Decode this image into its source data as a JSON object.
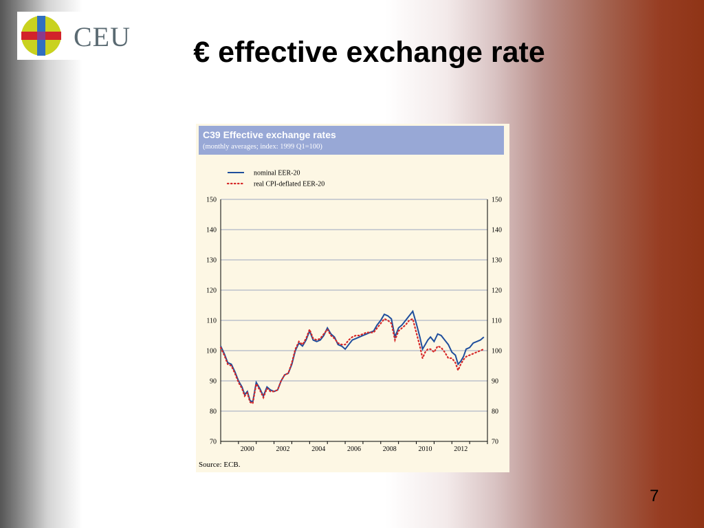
{
  "logo": {
    "text": "CEU",
    "colors": {
      "circle": "#c9d21f",
      "bar_vertical": "#2f6fc0",
      "bar_horizontal": "#d2232a",
      "center": "#8a3a8c",
      "text": "#5a6a72"
    }
  },
  "slide": {
    "title": "€ effective exchange rate",
    "page_number": "7"
  },
  "figure": {
    "title": "C39 Effective exchange rates",
    "subtitle": "(monthly averages; index: 1999 Q1=100)",
    "source": "Source: ECB.",
    "colors": {
      "header": "#98a8d6",
      "background": "#fdf7e4",
      "nominal": "#1f4e9c",
      "real": "#d62828",
      "grid": "#9aa6c0"
    }
  },
  "chart_data": {
    "type": "line",
    "title": "C39 Effective exchange rates",
    "subtitle": "(monthly averages; index: 1999 Q1=100)",
    "xlabel": "",
    "ylabel": "",
    "xlim": [
      1999.0,
      2014.0
    ],
    "ylim": [
      70,
      150
    ],
    "x_ticks": [
      "2000",
      "2002",
      "2004",
      "2006",
      "2008",
      "2010",
      "2012"
    ],
    "y_ticks": [
      70,
      80,
      90,
      100,
      110,
      120,
      130,
      140,
      150
    ],
    "grid": true,
    "legend_position": "top-left",
    "series": [
      {
        "name": "nominal EER-20",
        "style": "solid",
        "points": [
          [
            1999.0,
            101.5
          ],
          [
            1999.2,
            99.0
          ],
          [
            1999.4,
            96.0
          ],
          [
            1999.6,
            95.5
          ],
          [
            1999.8,
            93.0
          ],
          [
            2000.0,
            90.0
          ],
          [
            2000.2,
            88.0
          ],
          [
            2000.35,
            85.5
          ],
          [
            2000.5,
            86.5
          ],
          [
            2000.65,
            83.5
          ],
          [
            2000.8,
            83.0
          ],
          [
            2001.0,
            89.5
          ],
          [
            2001.2,
            87.5
          ],
          [
            2001.4,
            85.0
          ],
          [
            2001.6,
            88.0
          ],
          [
            2001.8,
            87.0
          ],
          [
            2002.0,
            86.5
          ],
          [
            2002.2,
            87.0
          ],
          [
            2002.4,
            90.0
          ],
          [
            2002.6,
            92.0
          ],
          [
            2002.8,
            92.5
          ],
          [
            2003.0,
            95.5
          ],
          [
            2003.2,
            100.0
          ],
          [
            2003.4,
            102.5
          ],
          [
            2003.6,
            101.5
          ],
          [
            2003.8,
            103.5
          ],
          [
            2004.0,
            106.5
          ],
          [
            2004.2,
            103.5
          ],
          [
            2004.4,
            103.0
          ],
          [
            2004.6,
            103.5
          ],
          [
            2004.8,
            105.0
          ],
          [
            2005.0,
            107.5
          ],
          [
            2005.2,
            105.5
          ],
          [
            2005.4,
            104.5
          ],
          [
            2005.6,
            102.0
          ],
          [
            2005.8,
            101.5
          ],
          [
            2006.0,
            100.5
          ],
          [
            2006.2,
            102.0
          ],
          [
            2006.4,
            103.5
          ],
          [
            2006.6,
            104.0
          ],
          [
            2006.8,
            104.5
          ],
          [
            2007.0,
            105.0
          ],
          [
            2007.2,
            105.5
          ],
          [
            2007.4,
            106.0
          ],
          [
            2007.6,
            106.5
          ],
          [
            2007.8,
            108.5
          ],
          [
            2008.0,
            110.0
          ],
          [
            2008.2,
            112.0
          ],
          [
            2008.4,
            111.5
          ],
          [
            2008.6,
            110.5
          ],
          [
            2008.8,
            104.5
          ],
          [
            2009.0,
            107.5
          ],
          [
            2009.2,
            108.5
          ],
          [
            2009.4,
            110.0
          ],
          [
            2009.6,
            111.5
          ],
          [
            2009.8,
            113.0
          ],
          [
            2010.0,
            109.0
          ],
          [
            2010.2,
            104.5
          ],
          [
            2010.35,
            100.5
          ],
          [
            2010.5,
            102.0
          ],
          [
            2010.65,
            103.5
          ],
          [
            2010.8,
            104.5
          ],
          [
            2011.0,
            103.0
          ],
          [
            2011.2,
            105.5
          ],
          [
            2011.4,
            105.0
          ],
          [
            2011.6,
            103.5
          ],
          [
            2011.8,
            102.0
          ],
          [
            2012.0,
            99.5
          ],
          [
            2012.2,
            98.5
          ],
          [
            2012.35,
            95.5
          ],
          [
            2012.5,
            96.5
          ],
          [
            2012.65,
            98.0
          ],
          [
            2012.8,
            100.5
          ],
          [
            2013.0,
            101.0
          ],
          [
            2013.2,
            102.5
          ],
          [
            2013.4,
            103.0
          ],
          [
            2013.6,
            103.5
          ],
          [
            2013.8,
            104.5
          ]
        ]
      },
      {
        "name": "real CPI-deflated EER-20",
        "style": "dotted",
        "points": [
          [
            1999.0,
            101.0
          ],
          [
            1999.2,
            98.5
          ],
          [
            1999.4,
            95.5
          ],
          [
            1999.6,
            95.0
          ],
          [
            1999.8,
            92.5
          ],
          [
            2000.0,
            89.5
          ],
          [
            2000.2,
            87.5
          ],
          [
            2000.35,
            85.0
          ],
          [
            2000.5,
            86.0
          ],
          [
            2000.65,
            83.0
          ],
          [
            2000.8,
            82.5
          ],
          [
            2001.0,
            89.0
          ],
          [
            2001.2,
            87.0
          ],
          [
            2001.4,
            84.5
          ],
          [
            2001.6,
            87.5
          ],
          [
            2001.8,
            86.5
          ],
          [
            2002.0,
            86.5
          ],
          [
            2002.2,
            87.0
          ],
          [
            2002.4,
            90.0
          ],
          [
            2002.6,
            92.0
          ],
          [
            2002.8,
            92.5
          ],
          [
            2003.0,
            96.0
          ],
          [
            2003.2,
            100.5
          ],
          [
            2003.4,
            103.0
          ],
          [
            2003.6,
            102.0
          ],
          [
            2003.8,
            104.0
          ],
          [
            2004.0,
            107.0
          ],
          [
            2004.2,
            104.0
          ],
          [
            2004.4,
            103.5
          ],
          [
            2004.6,
            104.0
          ],
          [
            2004.8,
            105.5
          ],
          [
            2005.0,
            107.0
          ],
          [
            2005.2,
            105.0
          ],
          [
            2005.4,
            104.0
          ],
          [
            2005.6,
            102.5
          ],
          [
            2005.8,
            102.0
          ],
          [
            2006.0,
            102.0
          ],
          [
            2006.2,
            103.5
          ],
          [
            2006.4,
            104.5
          ],
          [
            2006.6,
            105.0
          ],
          [
            2006.8,
            105.0
          ],
          [
            2007.0,
            105.5
          ],
          [
            2007.2,
            106.0
          ],
          [
            2007.4,
            106.0
          ],
          [
            2007.6,
            106.0
          ],
          [
            2007.8,
            107.5
          ],
          [
            2008.0,
            109.0
          ],
          [
            2008.2,
            110.5
          ],
          [
            2008.4,
            110.0
          ],
          [
            2008.6,
            109.0
          ],
          [
            2008.8,
            103.5
          ],
          [
            2009.0,
            106.5
          ],
          [
            2009.2,
            107.5
          ],
          [
            2009.4,
            108.5
          ],
          [
            2009.6,
            110.0
          ],
          [
            2009.8,
            110.5
          ],
          [
            2010.0,
            106.0
          ],
          [
            2010.2,
            101.5
          ],
          [
            2010.35,
            97.5
          ],
          [
            2010.5,
            99.5
          ],
          [
            2010.65,
            100.5
          ],
          [
            2010.8,
            100.5
          ],
          [
            2011.0,
            99.5
          ],
          [
            2011.2,
            101.5
          ],
          [
            2011.4,
            101.0
          ],
          [
            2011.6,
            99.5
          ],
          [
            2011.8,
            97.5
          ],
          [
            2012.0,
            97.5
          ],
          [
            2012.2,
            96.0
          ],
          [
            2012.35,
            93.5
          ],
          [
            2012.5,
            95.5
          ],
          [
            2012.65,
            97.0
          ],
          [
            2012.8,
            98.0
          ],
          [
            2013.0,
            98.5
          ],
          [
            2013.2,
            99.0
          ],
          [
            2013.4,
            99.5
          ],
          [
            2013.6,
            100.0
          ],
          [
            2013.8,
            100.5
          ]
        ]
      }
    ],
    "source": "Source: ECB."
  }
}
